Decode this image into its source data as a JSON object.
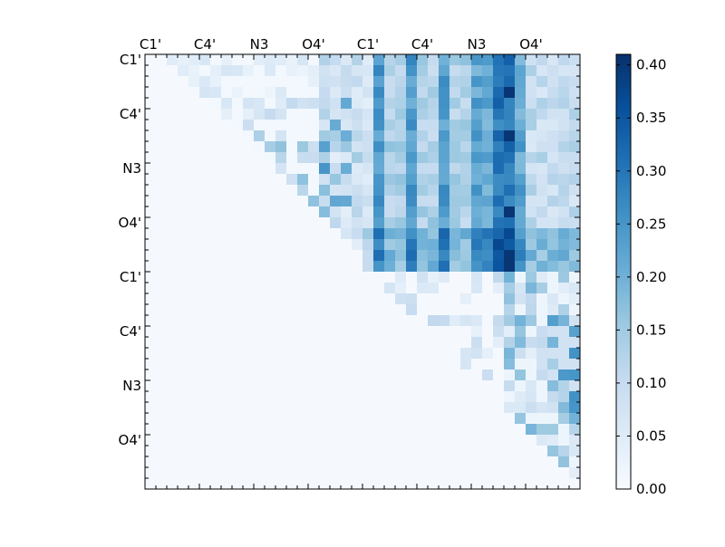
{
  "chart_data": {
    "type": "heatmap",
    "x_tick_labels": [
      "C1'",
      "C4'",
      "N3",
      "O4'",
      "C1'",
      "C4'",
      "N3",
      "O4'"
    ],
    "y_tick_labels": [
      "C1'",
      "C4'",
      "N3",
      "O4'",
      "C1'",
      "C4'",
      "N3",
      "O4'"
    ],
    "colorbar": {
      "min": 0.0,
      "max": 0.41,
      "ticks": [
        "0.00",
        "0.05",
        "0.10",
        "0.15",
        "0.20",
        "0.25",
        "0.30",
        "0.35",
        "0.40"
      ],
      "colormap": "Blues"
    },
    "grid_size": 40,
    "blocks": {
      "block_A_rows_0_19_cols_0_19": "sparse values 0.00-0.19, upper triangle",
      "block_B_rows_0_19_cols_20_39": "dense values 0.05-0.41, strong columns at N3 region",
      "block_C_rows_20_39_cols_20_39": "sparse values 0.00-0.25, upper triangle"
    },
    "colors": {
      "low": "#f7fbff",
      "high": "#08306b"
    }
  }
}
